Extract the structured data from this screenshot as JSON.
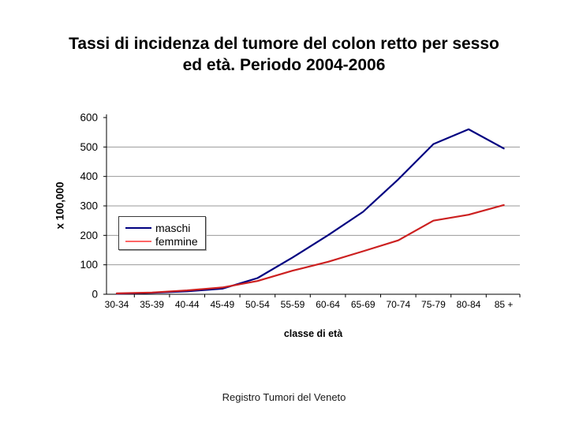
{
  "slide": {
    "title_line1": "Tassi di incidenza del tumore del colon retto per sesso",
    "title_line2": "ed età. Periodo 2004-2006",
    "footer": "Registro Tumori del Veneto"
  },
  "chart_data": {
    "type": "line",
    "title": "Tassi di incidenza del tumore del colon retto per sesso ed età. Periodo 2004-2006",
    "categories": [
      "30-34",
      "35-39",
      "40-44",
      "45-49",
      "50-54",
      "55-59",
      "60-64",
      "65-69",
      "70-74",
      "75-79",
      "80-84",
      "85 +"
    ],
    "series": [
      {
        "name": "maschi",
        "color": "#000080",
        "legend_color": "#000080",
        "values": [
          2,
          5,
          10,
          19,
          55,
          125,
          200,
          280,
          390,
          510,
          560,
          495
        ]
      },
      {
        "name": "femmine",
        "color": "#cc2020",
        "legend_color": "#ff6666",
        "values": [
          3,
          6,
          13,
          23,
          45,
          80,
          110,
          146,
          183,
          250,
          270,
          303
        ]
      }
    ],
    "xlabel": "classe di età",
    "ylabel": "x 100,000",
    "y_ticks": [
      0,
      100,
      200,
      300,
      400,
      500,
      600
    ],
    "ylim": [
      0,
      600
    ],
    "grid": true,
    "gridline_color": "#9a9a9a",
    "axis_color": "#000000",
    "legend_position": "middle-left"
  }
}
